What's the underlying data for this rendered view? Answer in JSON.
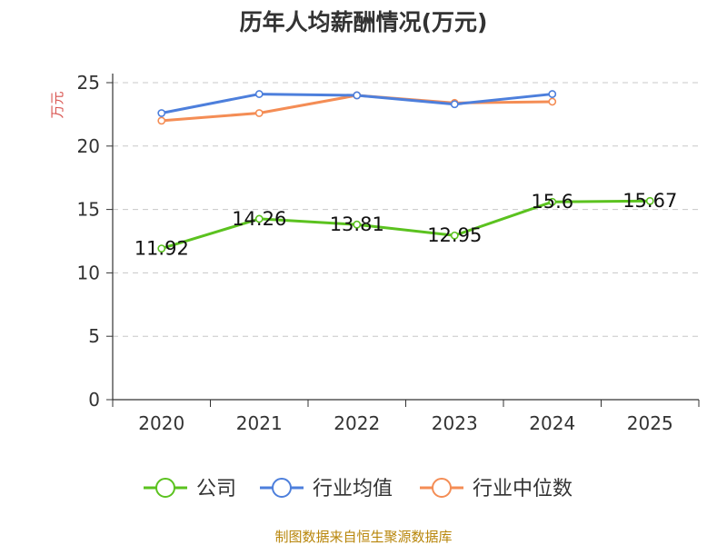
{
  "chart_data": {
    "type": "line",
    "title": "历年人均薪酬情况(万元)",
    "ylabel": "万元",
    "xlabel": "",
    "categories": [
      "2020",
      "2021",
      "2022",
      "2023",
      "2024",
      "2025"
    ],
    "ylim": [
      0,
      25
    ],
    "yticks": [
      0,
      5,
      10,
      15,
      20,
      25
    ],
    "grid": true,
    "legend_position": "bottom",
    "series": [
      {
        "name": "公司",
        "color": "#5bc21f",
        "values": [
          11.92,
          14.26,
          13.81,
          12.95,
          15.6,
          15.67
        ],
        "labels": [
          "11.92",
          "14.26",
          "13.81",
          "12.95",
          "15.6",
          "15.67"
        ]
      },
      {
        "name": "行业均值",
        "color": "#4d7fdc",
        "values": [
          22.6,
          24.1,
          24.0,
          23.3,
          24.1,
          null
        ]
      },
      {
        "name": "行业中位数",
        "color": "#f48d55",
        "values": [
          22.0,
          22.6,
          24.0,
          23.4,
          23.5,
          null
        ]
      }
    ]
  },
  "source": "制图数据来自恒生聚源数据库"
}
